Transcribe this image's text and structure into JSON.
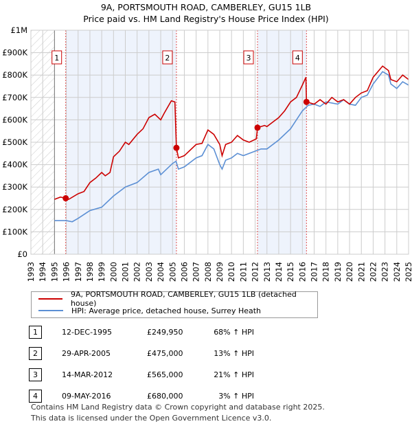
{
  "title": "9A, PORTSMOUTH ROAD, CAMBERLEY, GU15 1LB",
  "subtitle": "Price paid vs. HM Land Registry's House Price Index (HPI)",
  "chart_data": {
    "type": "line",
    "xlim": [
      1993,
      2025
    ],
    "ylim": [
      0,
      1000000
    ],
    "x_ticks": [
      "1993",
      "1994",
      "1995",
      "1996",
      "1997",
      "1998",
      "1999",
      "2000",
      "2001",
      "2002",
      "2003",
      "2004",
      "2005",
      "2006",
      "2007",
      "2008",
      "2009",
      "2010",
      "2011",
      "2012",
      "2013",
      "2014",
      "2015",
      "2016",
      "2017",
      "2018",
      "2019",
      "2020",
      "2021",
      "2022",
      "2023",
      "2024",
      "2025"
    ],
    "y_ticks": [
      {
        "v": 0,
        "l": "£0"
      },
      {
        "v": 100000,
        "l": "£100K"
      },
      {
        "v": 200000,
        "l": "£200K"
      },
      {
        "v": 300000,
        "l": "£300K"
      },
      {
        "v": 400000,
        "l": "£400K"
      },
      {
        "v": 500000,
        "l": "£500K"
      },
      {
        "v": 600000,
        "l": "£600K"
      },
      {
        "v": 700000,
        "l": "£700K"
      },
      {
        "v": 800000,
        "l": "£800K"
      },
      {
        "v": 900000,
        "l": "£900K"
      },
      {
        "v": 1000000,
        "l": "£1M"
      }
    ],
    "hatched_range": [
      1993,
      1995
    ],
    "shaded_ranges": [
      [
        1995.95,
        2005.33
      ],
      [
        2012.2,
        2016.35
      ]
    ],
    "series": [
      {
        "name": "9A, PORTSMOUTH ROAD, CAMBERLEY, GU15 1LB (detached house)",
        "color": "#cc0000",
        "x": [
          1995,
          1995.5,
          1995.95,
          1996.2,
          1997,
          1997.5,
          1998,
          1998.5,
          1999,
          1999.3,
          1999.7,
          2000,
          2000.5,
          2001,
          2001.3,
          2002,
          2002.5,
          2003,
          2003.5,
          2004,
          2004.3,
          2004.9,
          2005.2,
          2005.33,
          2005.5,
          2006,
          2007,
          2007.5,
          2008,
          2008.5,
          2009,
          2009.2,
          2009.5,
          2010,
          2010.5,
          2011,
          2011.5,
          2012.1,
          2012.2,
          2012.8,
          2013,
          2013.5,
          2014,
          2014.5,
          2015,
          2015.5,
          2016,
          2016.3,
          2016.35,
          2017,
          2017.5,
          2018,
          2018.5,
          2019,
          2019.5,
          2020,
          2020.5,
          2021,
          2021.5,
          2022,
          2022.8,
          2023.3,
          2023.5,
          2024,
          2024.5,
          2025
        ],
        "y": [
          245000,
          255000,
          250000,
          245000,
          270000,
          280000,
          320000,
          340000,
          365000,
          350000,
          365000,
          435000,
          460000,
          500000,
          490000,
          535000,
          560000,
          610000,
          625000,
          600000,
          630000,
          685000,
          680000,
          475000,
          430000,
          440000,
          490000,
          495000,
          555000,
          535000,
          490000,
          440000,
          490000,
          500000,
          530000,
          510000,
          500000,
          515000,
          565000,
          575000,
          570000,
          590000,
          610000,
          640000,
          680000,
          700000,
          755000,
          790000,
          680000,
          670000,
          690000,
          670000,
          700000,
          680000,
          690000,
          670000,
          700000,
          720000,
          730000,
          790000,
          840000,
          820000,
          780000,
          770000,
          800000,
          780000
        ]
      },
      {
        "name": "HPI: Average price, detached house, Surrey Heath",
        "color": "#5b8fd4",
        "x": [
          1995,
          1996,
          1996.5,
          1997,
          1998,
          1999,
          2000,
          2001,
          2002,
          2003,
          2003.8,
          2004,
          2005,
          2005.3,
          2005.5,
          2006,
          2007,
          2007.5,
          2008,
          2008.5,
          2009,
          2009.2,
          2009.5,
          2010,
          2010.5,
          2011,
          2011.5,
          2012,
          2012.5,
          2013,
          2014,
          2015,
          2016,
          2016.5,
          2017,
          2017.5,
          2018,
          2019,
          2019.5,
          2020,
          2020.5,
          2021,
          2021.5,
          2022,
          2022.8,
          2023.3,
          2023.5,
          2024,
          2024.5,
          2025
        ],
        "y": [
          150000,
          150000,
          145000,
          160000,
          195000,
          210000,
          260000,
          300000,
          320000,
          365000,
          380000,
          355000,
          405000,
          415000,
          380000,
          390000,
          430000,
          440000,
          490000,
          470000,
          400000,
          380000,
          420000,
          430000,
          450000,
          440000,
          450000,
          460000,
          470000,
          470000,
          510000,
          560000,
          640000,
          665000,
          670000,
          660000,
          680000,
          670000,
          690000,
          670000,
          665000,
          700000,
          710000,
          760000,
          815000,
          800000,
          760000,
          740000,
          770000,
          755000
        ]
      }
    ],
    "sales": [
      {
        "n": "1",
        "x": 1995.95,
        "y": 249950
      },
      {
        "n": "2",
        "x": 2005.33,
        "y": 475000
      },
      {
        "n": "3",
        "x": 2012.2,
        "y": 565000
      },
      {
        "n": "4",
        "x": 2016.35,
        "y": 680000
      }
    ]
  },
  "legend": {
    "red": "9A, PORTSMOUTH ROAD, CAMBERLEY, GU15 1LB (detached house)",
    "blue": "HPI: Average price, detached house, Surrey Heath"
  },
  "table": [
    {
      "n": "1",
      "date": "12-DEC-1995",
      "price": "£249,950",
      "hpi": "68% ↑ HPI"
    },
    {
      "n": "2",
      "date": "29-APR-2005",
      "price": "£475,000",
      "hpi": "13% ↑ HPI"
    },
    {
      "n": "3",
      "date": "14-MAR-2012",
      "price": "£565,000",
      "hpi": "21% ↑ HPI"
    },
    {
      "n": "4",
      "date": "09-MAY-2016",
      "price": "£680,000",
      "hpi": "3% ↑ HPI"
    }
  ],
  "footer": [
    "Contains HM Land Registry data © Crown copyright and database right 2025.",
    "This data is licensed under the Open Government Licence v3.0."
  ]
}
